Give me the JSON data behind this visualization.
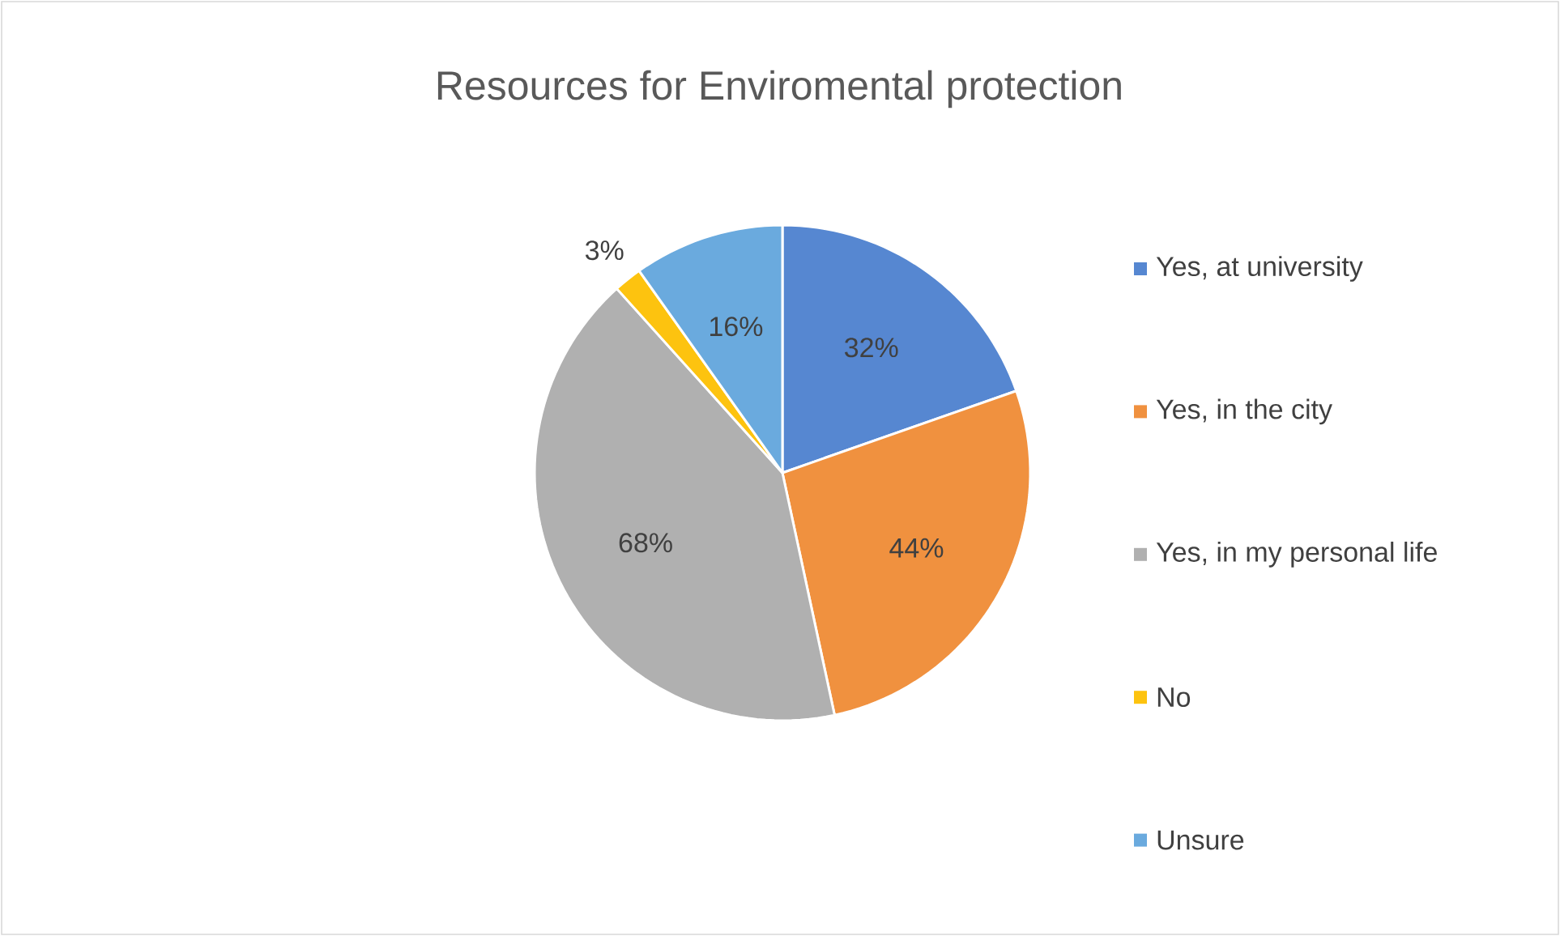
{
  "chart_data": {
    "type": "pie",
    "title": "Resources for Enviromental protection",
    "categories": [
      "Yes, at university",
      "Yes, in the city",
      "Yes, in my personal life",
      "No",
      "Unsure"
    ],
    "values": [
      32,
      44,
      68,
      3,
      16
    ],
    "colors": [
      "#5687d1",
      "#f0913f",
      "#b0b0b0",
      "#fdc30f",
      "#6aaade"
    ],
    "value_labels": [
      "32%",
      "44%",
      "68%",
      "3%",
      "16%"
    ],
    "legend": "right"
  }
}
